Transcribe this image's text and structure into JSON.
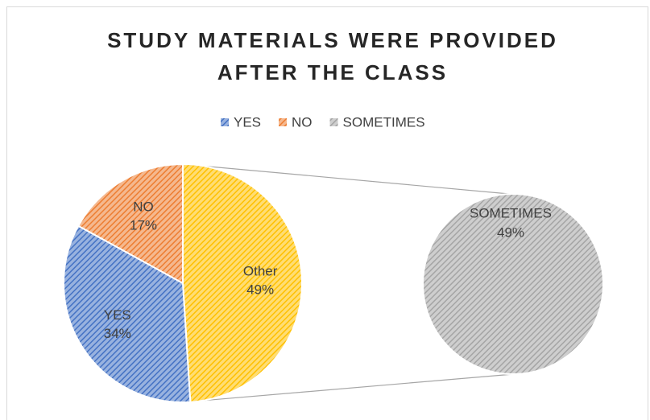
{
  "chart_data": {
    "type": "pie",
    "title": "STUDY MATERIALS WERE PROVIDED AFTER THE CLASS",
    "legend": [
      {
        "name": "YES",
        "color": "#4472c4"
      },
      {
        "name": "NO",
        "color": "#ed7d31"
      },
      {
        "name": "SOMETIMES",
        "color": "#a5a5a5"
      }
    ],
    "pie": {
      "categories": [
        "Other",
        "YES",
        "NO"
      ],
      "values": [
        49,
        34,
        17
      ],
      "value_labels": [
        "49%",
        "34%",
        "17%"
      ],
      "colors": [
        "#ffc000",
        "#4472c4",
        "#ed7d31"
      ]
    },
    "secondary": {
      "categories": [
        "SOMETIMES"
      ],
      "values": [
        49
      ],
      "value_labels": [
        "49%"
      ],
      "colors": [
        "#a5a5a5"
      ]
    }
  }
}
